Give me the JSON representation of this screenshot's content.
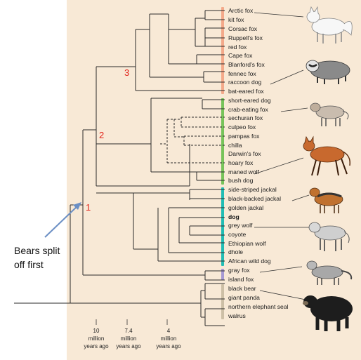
{
  "taxa": [
    "Arctic fox",
    "kit fox",
    "Corsac fox",
    "Ruppell's fox",
    "red fox",
    "Cape fox",
    "Blanford's fox",
    "fennec fox",
    "raccoon dog",
    "bat-eared fox",
    "short-eared dog",
    "crab-eating fox",
    "sechuran fox",
    "culpeo fox",
    "pampas fox",
    "chilla",
    "Darwin's fox",
    "hoary fox",
    "maned wolf",
    "bush dog",
    "side-striped jackal",
    "black-backed jackal",
    "golden jackal",
    "dog",
    "grey wolf",
    "coyote",
    "Ethiopian wolf",
    "dhole",
    "African wild dog",
    "gray fox",
    "island fox",
    "black bear",
    "giant panda",
    "northern elephant seal",
    "walrus"
  ],
  "highlight_taxon": "dog",
  "node_markers": [
    "1",
    "2",
    "3"
  ],
  "time_axis": [
    {
      "value": "10",
      "unit": "million",
      "suffix": "years ago"
    },
    {
      "value": "7.4",
      "unit": "million",
      "suffix": "years ago"
    },
    {
      "value": "4",
      "unit": "million",
      "suffix": "years ago"
    }
  ],
  "annotation": {
    "line1": "Bears split",
    "line2": "off first"
  },
  "clade_colors": {
    "vulpes": "#f4a98a",
    "south_american": "#77c35a",
    "wolf_like": "#22bdb4",
    "urocyon": "#a79ad4",
    "outgroup": "#cdbfa6"
  },
  "colors": {
    "panel": "#f8e9d6",
    "node_number": "#e2231a",
    "arrow": "#6b8fc4"
  },
  "illustrations": [
    "arctic-fox-icon",
    "raccoon-dog-icon",
    "crab-eating-fox-icon",
    "maned-wolf-icon",
    "black-backed-jackal-icon",
    "grey-wolf-icon",
    "gray-fox-icon",
    "black-bear-icon"
  ]
}
